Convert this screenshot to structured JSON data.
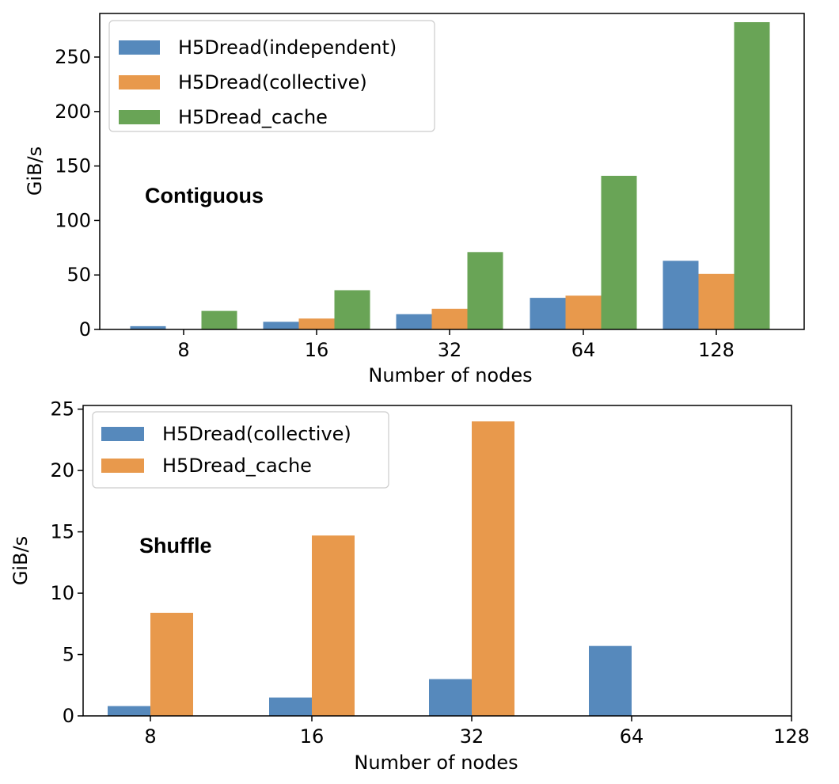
{
  "chart_data": [
    {
      "type": "bar",
      "categories": [
        "8",
        "16",
        "32",
        "64",
        "128"
      ],
      "series": [
        {
          "name": "H5Dread(independent)",
          "color": "#5689bc",
          "values": [
            3,
            7,
            14,
            29,
            63
          ]
        },
        {
          "name": "H5Dread(collective)",
          "color": "#e8994c",
          "values": [
            0,
            10,
            19,
            31,
            51
          ]
        },
        {
          "name": "H5Dread_cache",
          "color": "#69a456",
          "values": [
            17,
            36,
            71,
            141,
            282
          ]
        }
      ],
      "annotation": "Contiguous",
      "xlabel": "Number of nodes",
      "ylabel": "GiB/s",
      "ylim": [
        0,
        290
      ],
      "yticks": [
        0,
        50,
        100,
        150,
        200,
        250
      ],
      "legend_position": "top-left",
      "grid": false
    },
    {
      "type": "bar",
      "categories": [
        "8",
        "16",
        "32",
        "64",
        "128"
      ],
      "series": [
        {
          "name": "H5Dread(collective)",
          "color": "#5689bc",
          "values": [
            0.8,
            1.5,
            3.0,
            5.7,
            0
          ]
        },
        {
          "name": "H5Dread_cache",
          "color": "#e8994c",
          "values": [
            8.4,
            14.7,
            24.0,
            0,
            0
          ]
        }
      ],
      "annotation": "Shuffle",
      "xlabel": "Number of nodes",
      "ylabel": "GiB/s",
      "ylim": [
        0,
        25.3
      ],
      "yticks": [
        0,
        5,
        10,
        15,
        20,
        25
      ],
      "legend_position": "top-left",
      "grid": false
    }
  ]
}
